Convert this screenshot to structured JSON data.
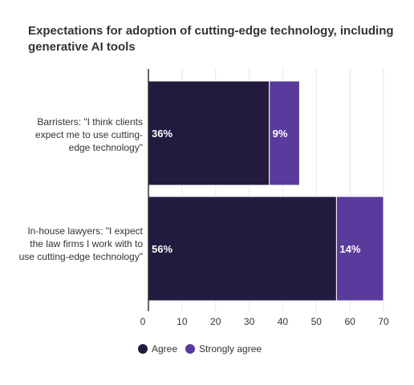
{
  "chart_data": {
    "type": "bar",
    "orientation": "horizontal",
    "stacked": true,
    "title": "Expectations for adoption of cutting-edge technology, including generative AI tools",
    "categories": [
      "Barristers: \"I think clients expect me to use cutting-edge technology\"",
      "In-house lawyers: \"I expect the law firms I work with to use cutting-edge technology\""
    ],
    "series": [
      {
        "name": "Agree",
        "color": "#221a3f",
        "values": [
          36,
          56
        ],
        "labels": [
          "36%",
          "56%"
        ]
      },
      {
        "name": "Strongly agree",
        "color": "#5a3a9c",
        "values": [
          9,
          14
        ],
        "labels": [
          "9%",
          "14%"
        ]
      }
    ],
    "xlim": [
      0,
      70
    ],
    "xticks": [
      "0",
      "10",
      "20",
      "30",
      "40",
      "50",
      "60",
      "70"
    ],
    "grid": true,
    "legend": "bottom"
  }
}
